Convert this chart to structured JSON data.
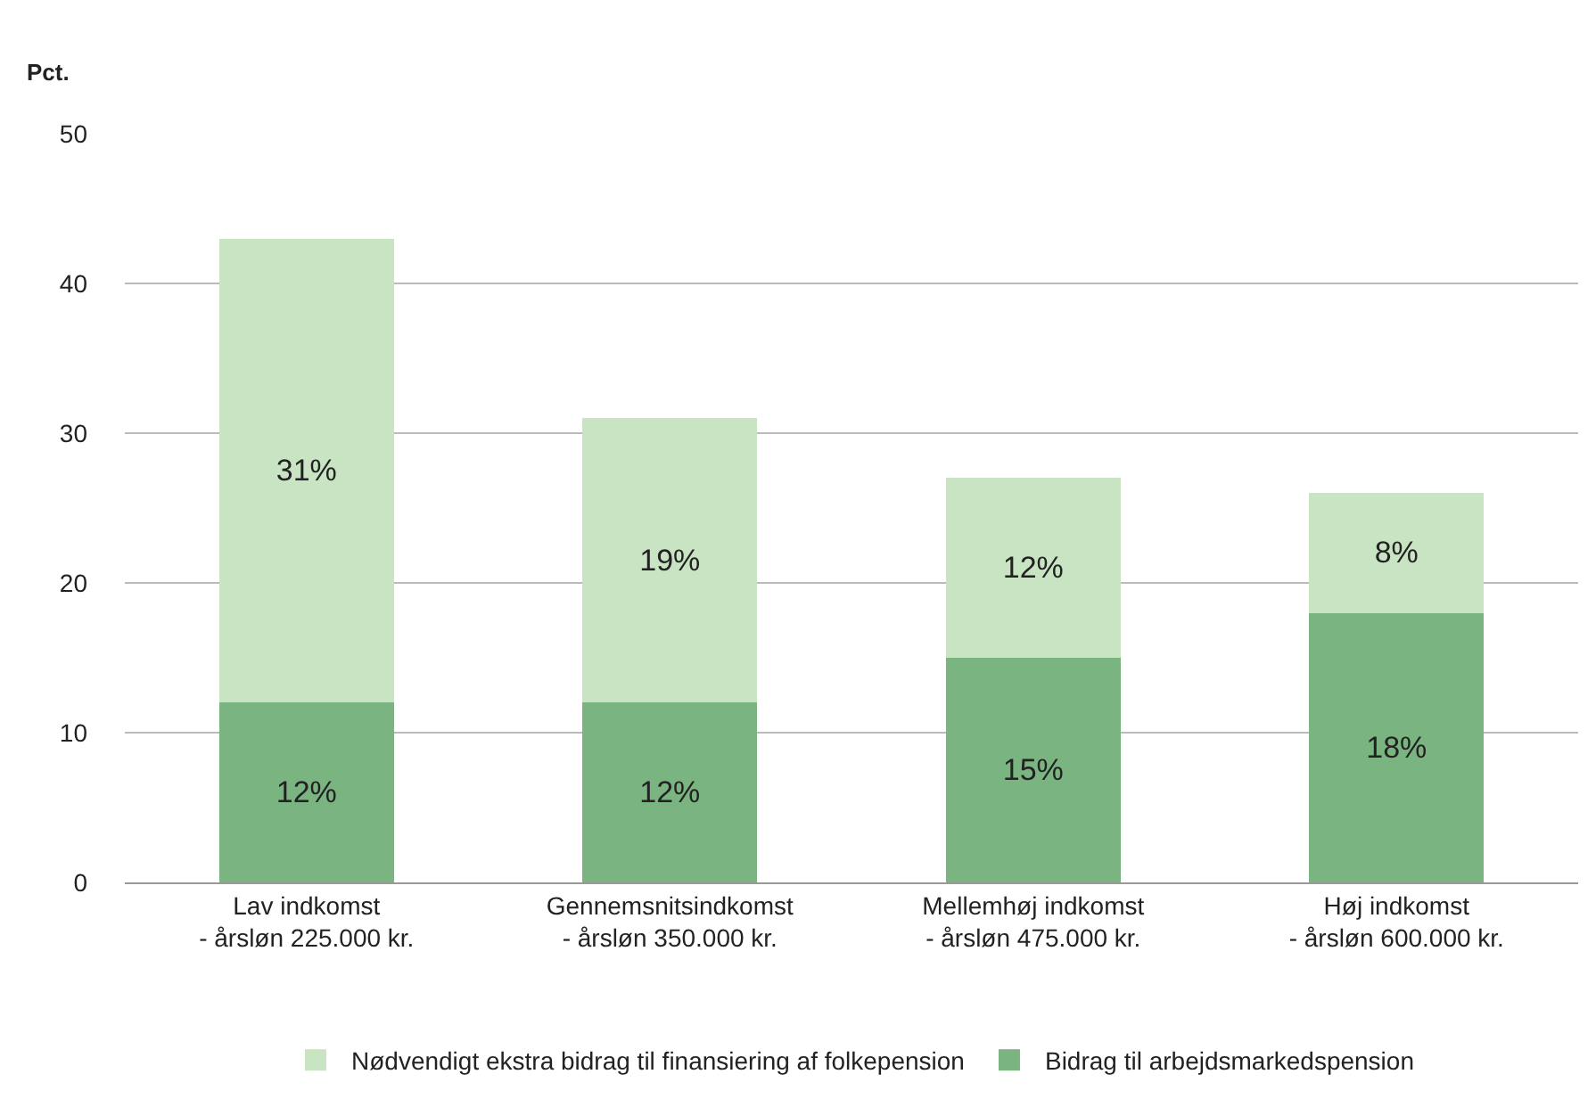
{
  "chart_data": {
    "type": "bar",
    "stacked": true,
    "ylabel": "Pct.",
    "categories": [
      "Lav indkomst\n- årsløn 225.000 kr.",
      "Gennemsnitsindkomst\n- årsløn 350.000 kr.",
      "Mellemhøj indkomst\n- årsløn 475.000 kr.",
      "Høj indkomst\n- årsløn 600.000 kr."
    ],
    "series": [
      {
        "name": "Bidrag til arbejdsmarkedspension",
        "color": "#7ab480",
        "values": [
          12,
          12,
          15,
          18
        ],
        "value_labels": [
          "12%",
          "12%",
          "15%",
          "18%"
        ]
      },
      {
        "name": "Nødvendigt ekstra bidrag til finansiering af folkepension",
        "color": "#c8e4c2",
        "values": [
          31,
          19,
          12,
          8
        ],
        "value_labels": [
          "31%",
          "19%",
          "12%",
          "8%"
        ]
      }
    ],
    "ylim": [
      0,
      50
    ],
    "yticks": [
      0,
      10,
      20,
      30,
      40,
      50
    ],
    "grid": "y",
    "legend": "bottom"
  }
}
